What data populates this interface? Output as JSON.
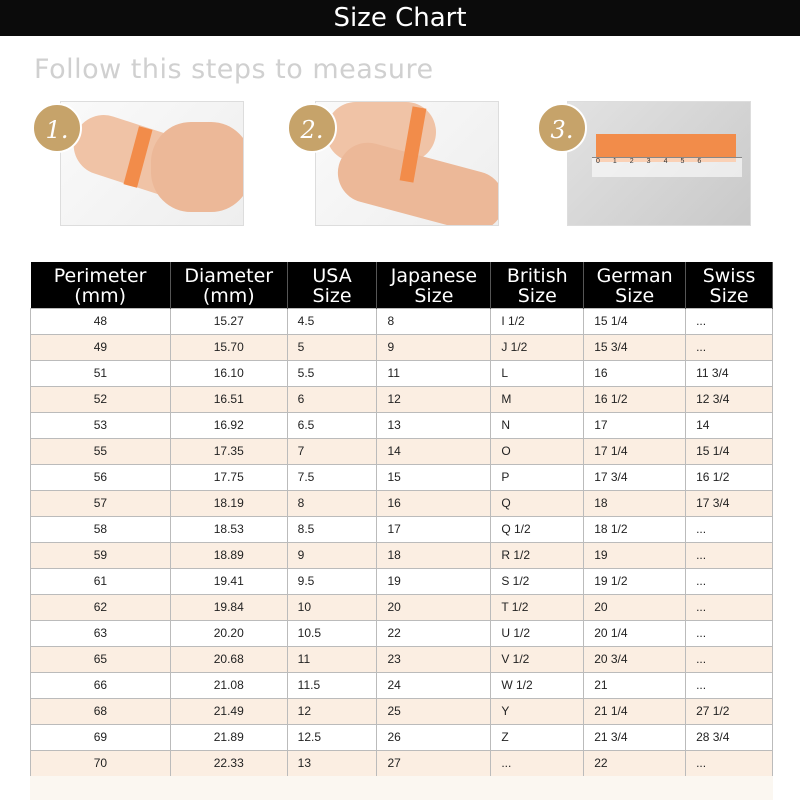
{
  "title": "Size Chart",
  "subtitle": "Follow this steps to measure",
  "steps": [
    {
      "label": "1."
    },
    {
      "label": "2."
    },
    {
      "label": "3."
    }
  ],
  "colors": {
    "header_bg": "#000000",
    "row_alt": "#fbeee2",
    "badge": "#c6a36a",
    "tape": "#f28c4a"
  },
  "table": {
    "headers": [
      [
        "Perimeter",
        "(mm)"
      ],
      [
        "Diameter",
        "(mm)"
      ],
      [
        "USA",
        "Size"
      ],
      [
        "Japanese",
        "Size"
      ],
      [
        "British",
        "Size"
      ],
      [
        "German",
        "Size"
      ],
      [
        "Swiss",
        "Size"
      ]
    ],
    "rows": [
      [
        "48",
        "15.27",
        "4.5",
        "8",
        "I 1/2",
        "15 1/4",
        "..."
      ],
      [
        "49",
        "15.70",
        "5",
        "9",
        "J 1/2",
        "15 3/4",
        "..."
      ],
      [
        "51",
        "16.10",
        "5.5",
        "11",
        "L",
        "16",
        "11 3/4"
      ],
      [
        "52",
        "16.51",
        "6",
        "12",
        "M",
        "16 1/2",
        "12 3/4"
      ],
      [
        "53",
        "16.92",
        "6.5",
        "13",
        "N",
        "17",
        "14"
      ],
      [
        "55",
        "17.35",
        "7",
        "14",
        "O",
        "17 1/4",
        "15 1/4"
      ],
      [
        "56",
        "17.75",
        "7.5",
        "15",
        "P",
        "17 3/4",
        "16 1/2"
      ],
      [
        "57",
        "18.19",
        "8",
        "16",
        "Q",
        "18",
        "17 3/4"
      ],
      [
        "58",
        "18.53",
        "8.5",
        "17",
        "Q 1/2",
        "18 1/2",
        "..."
      ],
      [
        "59",
        "18.89",
        "9",
        "18",
        "R 1/2",
        "19",
        "..."
      ],
      [
        "61",
        "19.41",
        "9.5",
        "19",
        "S 1/2",
        "19 1/2",
        "..."
      ],
      [
        "62",
        "19.84",
        "10",
        "20",
        "T 1/2",
        "20",
        "..."
      ],
      [
        "63",
        "20.20",
        "10.5",
        "22",
        "U 1/2",
        "20 1/4",
        "..."
      ],
      [
        "65",
        "20.68",
        "11",
        "23",
        "V 1/2",
        "20 3/4",
        "..."
      ],
      [
        "66",
        "21.08",
        "11.5",
        "24",
        "W 1/2",
        "21",
        "..."
      ],
      [
        "68",
        "21.49",
        "12",
        "25",
        "Y",
        "21 1/4",
        "27 1/2"
      ],
      [
        "69",
        "21.89",
        "12.5",
        "26",
        "Z",
        "21 3/4",
        "28 3/4"
      ],
      [
        "70",
        "22.33",
        "13",
        "27",
        "...",
        "22",
        "..."
      ]
    ]
  }
}
